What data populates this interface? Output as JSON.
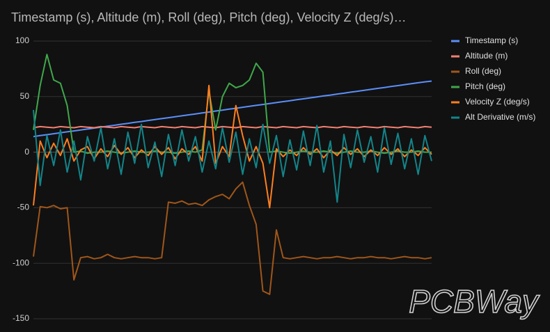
{
  "chart_data": {
    "type": "line",
    "title": "Timestamp (s), Altitude (m), Roll (deg), Pitch (deg), Velocity Z (deg/s)…",
    "ylim": [
      -150,
      100
    ],
    "yticks": [
      100,
      50,
      0,
      -50,
      -100,
      -150
    ],
    "grid": true,
    "legend": "right",
    "series": [
      {
        "name": "Timestamp (s)",
        "color": "#5b8ff9",
        "values": [
          14.0,
          14.9,
          15.7,
          16.6,
          17.4,
          18.3,
          19.1,
          20.0,
          20.8,
          21.7,
          22.5,
          23.4,
          24.2,
          25.1,
          25.9,
          26.8,
          27.6,
          28.5,
          29.3,
          30.2,
          31.0,
          31.9,
          32.7,
          33.6,
          34.4,
          35.3,
          36.1,
          37.0,
          37.8,
          38.7,
          39.5,
          40.4,
          41.2,
          42.1,
          42.9,
          43.8,
          44.6,
          45.5,
          46.3,
          47.2,
          48.0,
          48.9,
          49.7,
          50.6,
          51.4,
          52.3,
          53.1,
          54.0,
          54.8,
          55.7,
          56.5,
          57.4,
          58.2,
          59.1,
          59.9,
          60.8,
          61.6,
          62.5,
          63.3,
          64.0
        ]
      },
      {
        "name": "Altitude (m)",
        "color": "#f28072",
        "values": [
          22,
          23,
          22.5,
          22,
          23,
          22.5,
          22,
          23,
          22.5,
          22,
          23,
          22.5,
          22,
          23,
          22.5,
          22,
          23,
          22.5,
          22,
          23,
          22.5,
          22,
          23,
          22.5,
          22,
          23,
          22.5,
          22,
          23,
          22.5,
          22,
          23,
          22.5,
          22,
          23,
          22.5,
          22,
          23,
          22.5,
          22,
          23,
          22.5,
          22,
          23,
          22.5,
          22,
          23,
          22.5,
          22,
          23,
          22.5,
          22,
          23,
          22.5,
          22,
          23,
          22.5,
          22,
          23,
          22.5
        ]
      },
      {
        "name": "Roll (deg)",
        "color": "#a0561a",
        "values": [
          -94,
          -49,
          -50,
          -48,
          -51,
          -50,
          -115,
          -95,
          -94,
          -96,
          -95,
          -92,
          -95,
          -96,
          -95,
          -94,
          -95,
          -95,
          -96,
          -95,
          -45,
          -46,
          -44,
          -47,
          -46,
          -48,
          -43,
          -40,
          -38,
          -42,
          -33,
          -27,
          -48,
          -65,
          -125,
          -128,
          -70,
          -95,
          -96,
          -95,
          -94,
          -95,
          -96,
          -95,
          -95,
          -94,
          -95,
          -96,
          -95,
          -95,
          -94,
          -95,
          -95,
          -96,
          -95,
          -94,
          -95,
          -95,
          -96,
          -95
        ]
      },
      {
        "name": "Pitch (deg)",
        "color": "#3fa84b",
        "values": [
          20,
          60,
          88,
          65,
          62,
          42,
          0,
          1,
          -1,
          0,
          0,
          1,
          0,
          -1,
          0,
          1,
          0,
          0,
          1,
          0,
          0,
          -1,
          0,
          1,
          0,
          2,
          55,
          20,
          50,
          62,
          58,
          60,
          65,
          80,
          72,
          0,
          1,
          0,
          -1,
          0,
          1,
          0,
          0,
          1,
          0,
          -1,
          0,
          1,
          0,
          0,
          1,
          0,
          -1,
          0,
          1,
          0,
          0,
          1,
          0,
          0
        ]
      },
      {
        "name": "Velocity Z (deg/s)",
        "color": "#ff7f1e",
        "values": [
          -48,
          10,
          -5,
          8,
          -3,
          12,
          -8,
          2,
          5,
          -6,
          3,
          -4,
          6,
          -2,
          4,
          -5,
          2,
          -3,
          5,
          -2,
          4,
          -6,
          3,
          -2,
          5,
          -8,
          60,
          -10,
          5,
          -4,
          42,
          15,
          -8,
          5,
          -10,
          -50,
          3,
          -4,
          2,
          -3,
          4,
          -2,
          3,
          -5,
          2,
          -3,
          4,
          -2,
          3,
          -4,
          2,
          -3,
          4,
          -2,
          3,
          -4,
          2,
          -3,
          4,
          -2
        ]
      },
      {
        "name": "Alt Derivative (m/s)",
        "color": "#12858a",
        "values": [
          38,
          -30,
          15,
          -12,
          20,
          -18,
          10,
          -25,
          14,
          -8,
          22,
          -15,
          12,
          -20,
          18,
          -10,
          25,
          -14,
          9,
          -22,
          16,
          -12,
          20,
          -8,
          14,
          -18,
          10,
          -15,
          22,
          -9,
          18,
          -20,
          12,
          -14,
          25,
          -10,
          15,
          -22,
          11,
          -16,
          19,
          -12,
          24,
          -18,
          10,
          -45,
          16,
          -14,
          20,
          -9,
          14,
          -18,
          22,
          -11,
          17,
          -15,
          12,
          -20,
          15,
          -8
        ]
      }
    ]
  },
  "watermark": "PCBWay"
}
